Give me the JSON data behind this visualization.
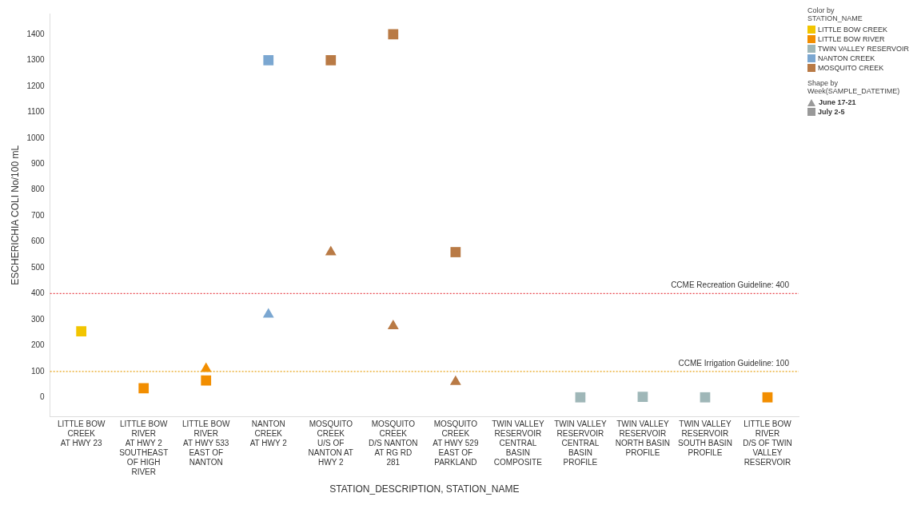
{
  "chart_data": {
    "type": "scatter",
    "xlabel": "STATION_DESCRIPTION, STATION_NAME",
    "ylabel": "ESCHERICHIA COLI No/100 mL",
    "categories": [
      "LITTLE BOW CREEK\nAT HWY 23",
      "LITTLE BOW RIVER\nAT HWY 2 SOUTHEAST OF HIGH RIVER",
      "LITTLE BOW RIVER\nAT HWY 533 EAST OF NANTON",
      "NANTON CREEK\nAT HWY 2",
      "MOSQUITO CREEK\nU/S OF NANTON AT HWY 2",
      "MOSQUITO CREEK\nD/S NANTON AT RG RD 281",
      "MOSQUITO CREEK\nAT HWY 529 EAST OF PARKLAND",
      "TWIN VALLEY RESERVOIR\nCENTRAL BASIN COMPOSITE",
      "TWIN VALLEY RESERVOIR\nCENTRAL BASIN PROFILE",
      "TWIN VALLEY RESERVOIR\nNORTH BASIN PROFILE",
      "TWIN VALLEY RESERVOIR\nSOUTH BASIN PROFILE",
      "LITTLE BOW RIVER\nD/S OF TWIN VALLEY RESERVOIR"
    ],
    "legend_title": "Color by STATION_NAME",
    "annotations": [
      "Shape by Week(SAMPLE_DATETIME)"
    ],
    "series": [
      {
        "name": "LITTLE BOW CREEK",
        "color": "#f2c500",
        "values": [
          null,
          null,
          null,
          null,
          null,
          null,
          null,
          null,
          null,
          null,
          null,
          null
        ]
      },
      {
        "name": "LITTLE BOW RIVER",
        "color": "#f28e00",
        "values": [
          null,
          null,
          null,
          null,
          null,
          null,
          null,
          null,
          null,
          null,
          null,
          null
        ]
      },
      {
        "name": "TWIN VALLEY RESERVOIR",
        "color": "#9fb7b8",
        "values": [
          null,
          null,
          null,
          null,
          null,
          null,
          null,
          null,
          null,
          null,
          null,
          null
        ]
      },
      {
        "name": "NANTON CREEK",
        "color": "#7ba7d1",
        "values": [
          null,
          null,
          null,
          null,
          null,
          null,
          null,
          null,
          null,
          null,
          null,
          null
        ]
      },
      {
        "name": "MOSQUITO CREEK",
        "color": "#b97a45",
        "values": [
          null,
          null,
          null,
          null,
          null,
          null,
          null,
          null,
          null,
          null,
          null,
          null
        ]
      },
      {
        "name": "June 17-21",
        "color": "#999999",
        "marker": "triangle",
        "values": [
          null,
          null,
          110,
          320,
          560,
          275,
          60,
          null,
          null,
          null,
          null,
          null
        ],
        "colors": [
          "#f2c500",
          "#f28e00",
          "#f28e00",
          "#7ba7d1",
          "#b97a45",
          "#b97a45",
          "#b97a45",
          "#9fb7b8",
          "#9fb7b8",
          "#9fb7b8",
          "#9fb7b8",
          "#f28e00"
        ]
      },
      {
        "name": "July 2-5",
        "color": "#999999",
        "marker": "square",
        "values": [
          255,
          35,
          65,
          1300,
          1300,
          1400,
          560,
          null,
          0,
          2,
          0,
          0
        ],
        "colors": [
          "#f2c500",
          "#f28e00",
          "#f28e00",
          "#7ba7d1",
          "#b97a45",
          "#b97a45",
          "#b97a45",
          "#9fb7b8",
          "#9fb7b8",
          "#9fb7b8",
          "#9fb7b8",
          "#f28e00"
        ]
      }
    ],
    "ylim": [
      -75,
      1480
    ],
    "yticks": [
      0,
      100,
      200,
      300,
      400,
      500,
      600,
      700,
      800,
      900,
      1000,
      1100,
      1200,
      1300,
      1400
    ],
    "ref_lines": [
      {
        "axis": "y",
        "value": 400,
        "label": "CCME Recreation Guideline: 400",
        "color": "#e8474f",
        "line_style": "dotted"
      },
      {
        "axis": "y",
        "value": 100,
        "label": "CCME Irrigation Guideline: 100",
        "color": "#e8a317",
        "line_style": "dotted"
      }
    ],
    "grid": false,
    "legend": "right"
  }
}
